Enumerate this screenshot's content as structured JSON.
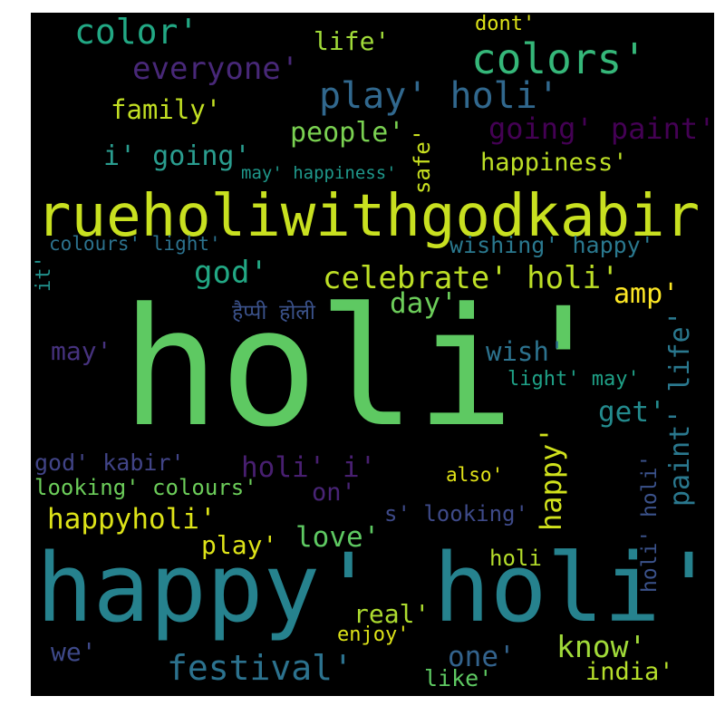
{
  "colors": {
    "background": "#000000",
    "frame": "#ffffff"
  },
  "words": [
    {
      "text": "holi'",
      "color": "#5ec962"
    },
    {
      "text": "happy' holi'",
      "color": "#26828e"
    },
    {
      "text": "rueholiwithgodkabir'",
      "color": "#c8e020"
    },
    {
      "text": "play' holi'",
      "color": "#31688e"
    },
    {
      "text": "colors'",
      "color": "#35b779"
    },
    {
      "text": "color'",
      "color": "#22a884"
    },
    {
      "text": "everyone'",
      "color": "#482878"
    },
    {
      "text": "life'",
      "color": "#a0da39"
    },
    {
      "text": "dont'",
      "color": "#dde318"
    },
    {
      "text": "family'",
      "color": "#c2df23"
    },
    {
      "text": "going' paint'",
      "color": "#440154"
    },
    {
      "text": "people'",
      "color": "#7ad151"
    },
    {
      "text": "i' going'",
      "color": "#2a9d8f"
    },
    {
      "text": "happiness'",
      "color": "#bddf26"
    },
    {
      "text": "may' happiness'",
      "color": "#1f988b"
    },
    {
      "text": "safe'",
      "color": "#c8e020"
    },
    {
      "text": "colours' light'",
      "color": "#2c728e"
    },
    {
      "text": "wishing' happy'",
      "color": "#2a788e"
    },
    {
      "text": "god'",
      "color": "#22a884"
    },
    {
      "text": "celebrate' holi'",
      "color": "#bddf26"
    },
    {
      "text": "it'",
      "color": "#21918c"
    },
    {
      "text": "day'",
      "color": "#6ccd5a"
    },
    {
      "text": "amp'",
      "color": "#fde725"
    },
    {
      "text": "हैप्पी होली",
      "color": "#3b528b"
    },
    {
      "text": "may'",
      "color": "#46327e"
    },
    {
      "text": "wish'",
      "color": "#2c728e"
    },
    {
      "text": "paint' life'",
      "color": "#2a788e"
    },
    {
      "text": "light' may'",
      "color": "#1fa187"
    },
    {
      "text": "get'",
      "color": "#238a8d"
    },
    {
      "text": "god' kabir'",
      "color": "#414487"
    },
    {
      "text": "holi' i'",
      "color": "#481f70"
    },
    {
      "text": "happy'",
      "color": "#d0e11c"
    },
    {
      "text": "holi' holi'",
      "color": "#3b528b"
    },
    {
      "text": "also'",
      "color": "#e2e418"
    },
    {
      "text": "looking' colours'",
      "color": "#6ccd5a"
    },
    {
      "text": "on'",
      "color": "#482475"
    },
    {
      "text": "happyholi'",
      "color": "#dde318"
    },
    {
      "text": "s' looking'",
      "color": "#3e4a89"
    },
    {
      "text": "love'",
      "color": "#5ec962"
    },
    {
      "text": "play'",
      "color": "#dde318"
    },
    {
      "text": "holi",
      "color": "#b5de2b"
    },
    {
      "text": "real'",
      "color": "#addc30"
    },
    {
      "text": "enjoy'",
      "color": "#dde318"
    },
    {
      "text": "we'",
      "color": "#3e4989"
    },
    {
      "text": "festival'",
      "color": "#2c728e"
    },
    {
      "text": "one'",
      "color": "#33638d"
    },
    {
      "text": "know'",
      "color": "#a0da39"
    },
    {
      "text": "india'",
      "color": "#b5de2b"
    },
    {
      "text": "like'",
      "color": "#5ec962"
    }
  ]
}
